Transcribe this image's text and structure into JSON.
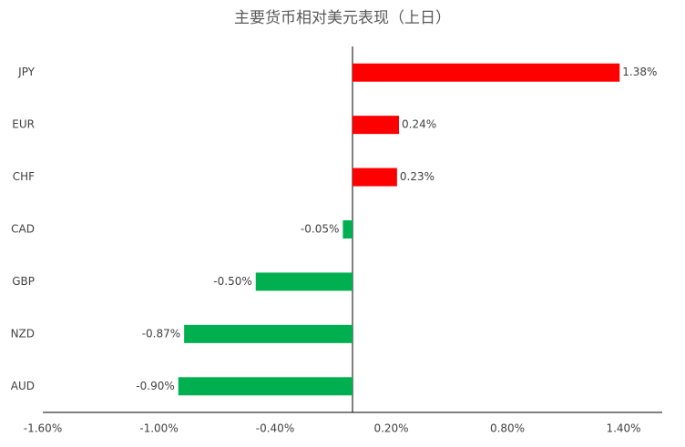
{
  "chart_data": {
    "type": "hbar",
    "title": "主要货币相对美元表现（上日）",
    "categories": [
      "JPY",
      "EUR",
      "CHF",
      "CAD",
      "GBP",
      "NZD",
      "AUD"
    ],
    "values": [
      1.38,
      0.24,
      0.23,
      -0.05,
      -0.5,
      -0.87,
      -0.9
    ],
    "value_labels": [
      "1.38%",
      "0.24%",
      "0.23%",
      "-0.05%",
      "-0.50%",
      "-0.87%",
      "-0.90%"
    ],
    "colors": [
      "#ff0000",
      "#ff0000",
      "#ff0000",
      "#00b050",
      "#00b050",
      "#00b050",
      "#00b050"
    ],
    "xlim": [
      -1.6,
      1.6
    ],
    "xticks": [
      {
        "value": -1.6,
        "label": "-1.60%"
      },
      {
        "value": -1.0,
        "label": "-1.00%"
      },
      {
        "value": -0.4,
        "label": "-0.40%"
      },
      {
        "value": 0.2,
        "label": "0.20%"
      },
      {
        "value": 0.8,
        "label": "0.80%"
      },
      {
        "value": 1.4,
        "label": "1.40%"
      }
    ]
  }
}
